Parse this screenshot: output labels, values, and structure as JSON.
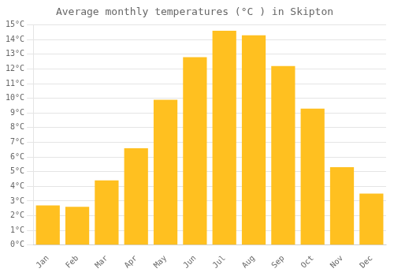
{
  "chart_data": {
    "type": "bar",
    "title": "Average monthly temperatures (°C ) in Skipton",
    "categories": [
      "Jan",
      "Feb",
      "Mar",
      "Apr",
      "May",
      "Jun",
      "Jul",
      "Aug",
      "Sep",
      "Oct",
      "Nov",
      "Dec"
    ],
    "values": [
      2.7,
      2.6,
      4.4,
      6.6,
      9.9,
      12.8,
      14.6,
      14.3,
      12.2,
      9.3,
      5.3,
      3.5
    ],
    "color": "#FFC020",
    "ylim": [
      0,
      15
    ],
    "yticks": [
      {
        "value": 0,
        "label": "0°C"
      },
      {
        "value": 1,
        "label": "1°C"
      },
      {
        "value": 2,
        "label": "2°C"
      },
      {
        "value": 3,
        "label": "3°C"
      },
      {
        "value": 4,
        "label": "4°C"
      },
      {
        "value": 5,
        "label": "5°C"
      },
      {
        "value": 6,
        "label": "6°C"
      },
      {
        "value": 7,
        "label": "7°C"
      },
      {
        "value": 8,
        "label": "8°C"
      },
      {
        "value": 9,
        "label": "9°C"
      },
      {
        "value": 10,
        "label": "10°C"
      },
      {
        "value": 11,
        "label": "11°C"
      },
      {
        "value": 12,
        "label": "12°C"
      },
      {
        "value": 13,
        "label": "13°C"
      },
      {
        "value": 14,
        "label": "14°C"
      },
      {
        "value": 15,
        "label": "15°C"
      }
    ],
    "grid": true
  }
}
